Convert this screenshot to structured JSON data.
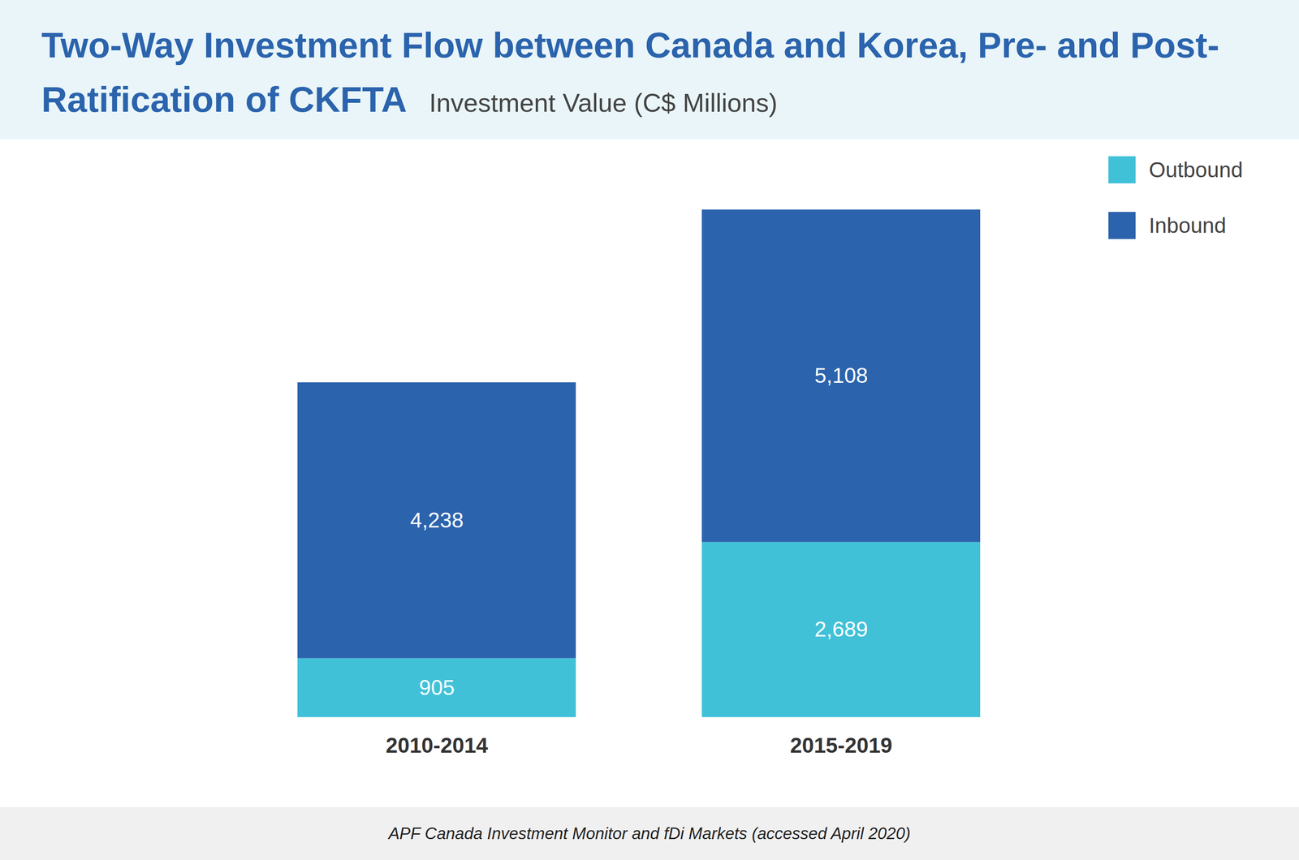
{
  "chart_data": {
    "type": "bar",
    "title": "Two-Way Investment Flow between Canada and Korea, Pre- and Post-Ratification of CKFTA",
    "subtitle": "Investment Value (C$ Millions)",
    "caption": "APF Canada Investment Monitor and fDi Markets (accessed April 2020)",
    "categories": [
      "2010-2014",
      "2015-2019"
    ],
    "series": [
      {
        "name": "Outbound",
        "color": "#41c1d8",
        "values": [
          905,
          2689
        ],
        "value_labels": [
          "905",
          "2,689"
        ]
      },
      {
        "name": "Inbound",
        "color": "#2c63ad",
        "values": [
          4238,
          5108
        ],
        "value_labels": [
          "4,238",
          "5,108"
        ]
      }
    ],
    "ylim": [
      0,
      8000
    ],
    "stacked": true,
    "data_labels": true,
    "tick_labels": "x",
    "legend": "top-right",
    "grid": false
  }
}
